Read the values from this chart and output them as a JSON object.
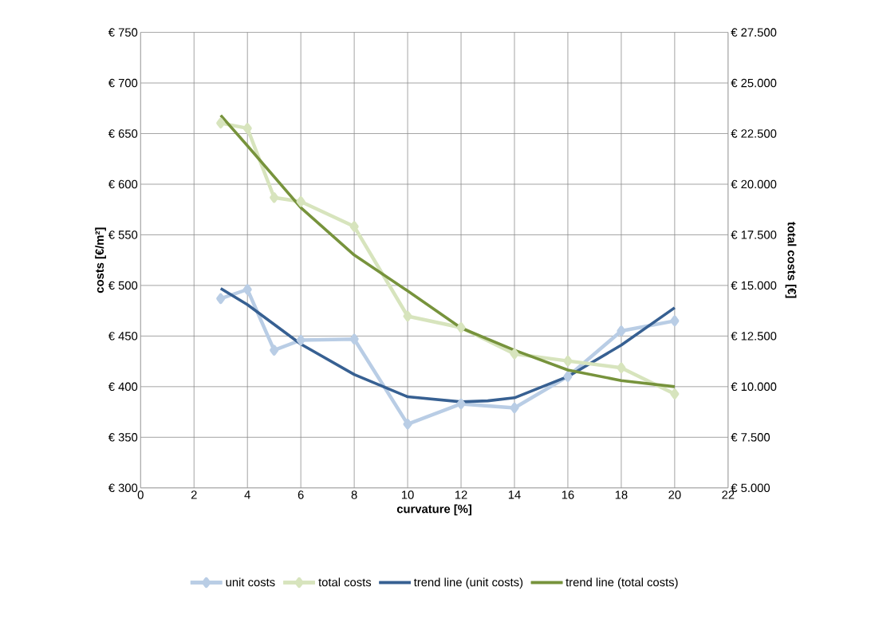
{
  "chart_data": {
    "type": "line",
    "xlabel": "curvature   [%]",
    "ylabel": "costs   [€/m²]",
    "y2label": "total costs   [€]",
    "x": [
      3,
      4,
      5,
      6,
      8,
      10,
      12,
      14,
      16,
      18,
      20
    ],
    "xlim": [
      0,
      22
    ],
    "xticks": [
      0,
      2,
      4,
      6,
      8,
      10,
      12,
      14,
      16,
      18,
      20,
      22
    ],
    "ylim": [
      300,
      750
    ],
    "yticks": [
      {
        "value": 300,
        "label": "€ 300"
      },
      {
        "value": 350,
        "label": "€ 350"
      },
      {
        "value": 400,
        "label": "€ 400"
      },
      {
        "value": 450,
        "label": "€ 450"
      },
      {
        "value": 500,
        "label": "€ 500"
      },
      {
        "value": 550,
        "label": "€ 550"
      },
      {
        "value": 600,
        "label": "€ 600"
      },
      {
        "value": 650,
        "label": "€ 650"
      },
      {
        "value": 700,
        "label": "€ 700"
      },
      {
        "value": 750,
        "label": "€ 750"
      }
    ],
    "y2lim": [
      5000,
      27500
    ],
    "y2ticks": [
      {
        "value": 5000,
        "label": "€ 5.000"
      },
      {
        "value": 7500,
        "label": "€ 7.500"
      },
      {
        "value": 10000,
        "label": "€ 10.000"
      },
      {
        "value": 12500,
        "label": "€ 12.500"
      },
      {
        "value": 15000,
        "label": "€ 15.000"
      },
      {
        "value": 17500,
        "label": "€ 17.500"
      },
      {
        "value": 20000,
        "label": "€ 20.000"
      },
      {
        "value": 22500,
        "label": "€ 22.500"
      },
      {
        "value": 25000,
        "label": "€ 25.000"
      },
      {
        "value": 27500,
        "label": "€ 27.500"
      }
    ],
    "grid": true,
    "legend": "bottom",
    "series": [
      {
        "name": "unit costs",
        "color": "#b9cde5",
        "marker": "diamond",
        "values": [
          487,
          496,
          436,
          446,
          447,
          363,
          383,
          379,
          410,
          455,
          465
        ]
      },
      {
        "name": "total costs",
        "color": "#d7e4bd",
        "marker": "diamond",
        "axis": "y2",
        "values": [
          23020,
          22760,
          19340,
          19140,
          17910,
          13480,
          12920,
          11620,
          11270,
          10930,
          9640
        ]
      },
      {
        "name": "trend line (unit costs)",
        "color": "#376092",
        "marker": "none",
        "x": [
          3,
          4,
          6,
          8,
          10,
          12,
          13,
          14,
          16,
          18,
          20
        ],
        "values": [
          497,
          481,
          442,
          412,
          390,
          385,
          386,
          389,
          410,
          441,
          478
        ]
      },
      {
        "name": "trend line (total costs)",
        "color": "#77933c",
        "marker": "none",
        "axis": "y2",
        "x": [
          3,
          4,
          6,
          8,
          10,
          12,
          14,
          16,
          18,
          20
        ],
        "values": [
          23400,
          21900,
          18840,
          16500,
          14730,
          12900,
          11800,
          10820,
          10300,
          10000
        ]
      }
    ]
  }
}
